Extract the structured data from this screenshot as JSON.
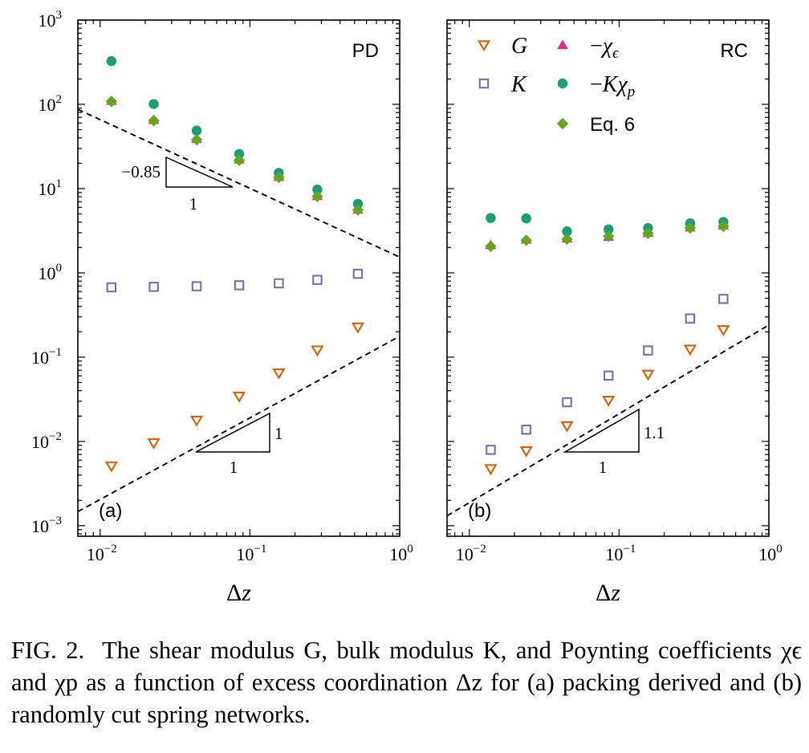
{
  "chart_data": [
    {
      "type": "scatter",
      "panel": "(a)",
      "title": "PD",
      "xlabel": "Δz",
      "x_scale": "log",
      "y_scale": "log",
      "xlim": [
        0.0071,
        1.0
      ],
      "ylim": [
        0.00075,
        1000
      ],
      "x_ticks": [
        {
          "base": "10",
          "exp": "−2"
        },
        {
          "base": "10",
          "exp": "−1"
        },
        {
          "base": "10",
          "exp": "0"
        }
      ],
      "y_ticks": [
        {
          "base": "10",
          "exp": "−3"
        },
        {
          "base": "10",
          "exp": "−2"
        },
        {
          "base": "10",
          "exp": "−1"
        },
        {
          "base": "10",
          "exp": "0"
        },
        {
          "base": "10",
          "exp": "1"
        },
        {
          "base": "10",
          "exp": "2"
        },
        {
          "base": "10",
          "exp": "3"
        }
      ],
      "series": [
        {
          "name": "G",
          "marker": "triangle-down-open",
          "color": "#d95f02",
          "x": [
            0.0119,
            0.0228,
            0.0441,
            0.0848,
            0.156,
            0.282,
            0.526
          ],
          "y": [
            0.0051,
            0.0096,
            0.0178,
            0.0343,
            0.0649,
            0.121,
            0.227
          ]
        },
        {
          "name": "K",
          "marker": "square-open",
          "color": "#7570b3",
          "x": [
            0.0119,
            0.0228,
            0.0441,
            0.0848,
            0.156,
            0.282,
            0.526
          ],
          "y": [
            0.674,
            0.683,
            0.694,
            0.713,
            0.752,
            0.826,
            0.976
          ]
        },
        {
          "name": "−χϵ",
          "marker": "triangle-up",
          "color": "#e7298a",
          "x": [
            0.0119,
            0.0228,
            0.0441,
            0.0848,
            0.156,
            0.282,
            0.526
          ],
          "y": [
            110,
            65.4,
            38.8,
            22.2,
            13.8,
            8.16,
            5.64
          ]
        },
        {
          "name": "−Kχp",
          "marker": "circle",
          "color": "#1b9e77",
          "x": [
            0.0119,
            0.0228,
            0.0441,
            0.0848,
            0.156,
            0.282,
            0.526
          ],
          "y": [
            326,
            101,
            48.8,
            25.8,
            15.4,
            9.75,
            6.6
          ]
        },
        {
          "name": "Eq. 6",
          "marker": "diamond",
          "color": "#66a61e",
          "x": [
            0.0119,
            0.0228,
            0.0441,
            0.0848,
            0.156,
            0.282,
            0.526
          ],
          "y": [
            108,
            64.1,
            38.0,
            21.7,
            13.6,
            8.09,
            5.57
          ]
        }
      ],
      "guide_lines": [
        {
          "x": [
            0.0071,
            1.0
          ],
          "y": [
            87.1,
            1.54
          ]
        },
        {
          "x": [
            0.0071,
            1.0
          ],
          "y": [
            0.00147,
            0.177
          ]
        }
      ],
      "slope_annotations": [
        {
          "slope_label": "−0.85",
          "run_label": "1"
        },
        {
          "slope_label": "1",
          "run_label": "1"
        }
      ],
      "panel_label": "(a)"
    },
    {
      "type": "scatter",
      "panel": "(b)",
      "title": "RC",
      "xlabel": "Δz",
      "x_scale": "log",
      "y_scale": "log",
      "xlim": [
        0.0071,
        1.0
      ],
      "ylim": [
        0.00075,
        1000
      ],
      "x_ticks": [
        {
          "base": "10",
          "exp": "−2"
        },
        {
          "base": "10",
          "exp": "−1"
        },
        {
          "base": "10",
          "exp": "0"
        }
      ],
      "series": [
        {
          "name": "G",
          "marker": "triangle-down-open",
          "color": "#d95f02",
          "x": [
            0.0139,
            0.024,
            0.0449,
            0.085,
            0.156,
            0.298,
            0.497
          ],
          "y": [
            0.00473,
            0.00772,
            0.0153,
            0.0307,
            0.0624,
            0.124,
            0.211
          ]
        },
        {
          "name": "K",
          "marker": "square-open",
          "color": "#7570b3",
          "x": [
            0.0139,
            0.024,
            0.0449,
            0.085,
            0.156,
            0.298,
            0.497
          ],
          "y": [
            0.00795,
            0.0138,
            0.0292,
            0.0605,
            0.12,
            0.288,
            0.491
          ]
        },
        {
          "name": "−χϵ",
          "marker": "triangle-up",
          "color": "#e7298a",
          "x": [
            0.0139,
            0.024,
            0.0449,
            0.085,
            0.156,
            0.298,
            0.497
          ],
          "y": [
            2.14,
            2.49,
            2.56,
            2.69,
            2.99,
            3.46,
            3.67
          ]
        },
        {
          "name": "−Kχp",
          "marker": "circle",
          "color": "#1b9e77",
          "x": [
            0.0139,
            0.024,
            0.0449,
            0.085,
            0.156,
            0.298,
            0.497
          ],
          "y": [
            4.48,
            4.43,
            3.11,
            3.29,
            3.41,
            3.88,
            4.03
          ]
        },
        {
          "name": "Eq. 6",
          "marker": "diamond",
          "color": "#66a61e",
          "x": [
            0.0139,
            0.024,
            0.0449,
            0.085,
            0.156,
            0.298,
            0.497
          ],
          "y": [
            2.07,
            2.44,
            2.51,
            2.72,
            2.95,
            3.42,
            3.57
          ]
        }
      ],
      "guide_lines": [
        {
          "x": [
            0.0071,
            1.0
          ],
          "y": [
            0.00131,
            0.241
          ]
        }
      ],
      "slope_annotations": [
        {
          "slope_label": "1.1",
          "run_label": "1"
        }
      ],
      "panel_label": "(b)"
    }
  ],
  "legend": [
    {
      "label": "G"
    },
    {
      "label": "−χϵ"
    },
    {
      "label": "K"
    },
    {
      "label": "−Kχp"
    },
    {
      "label": "Eq. 6"
    }
  ],
  "caption": {
    "label": "FIG. 2.",
    "text": "The shear modulus G, bulk modulus K, and Poynting coefficients χϵ and χp as a function of excess coordination Δz for (a) packing derived and (b) randomly cut spring networks."
  }
}
